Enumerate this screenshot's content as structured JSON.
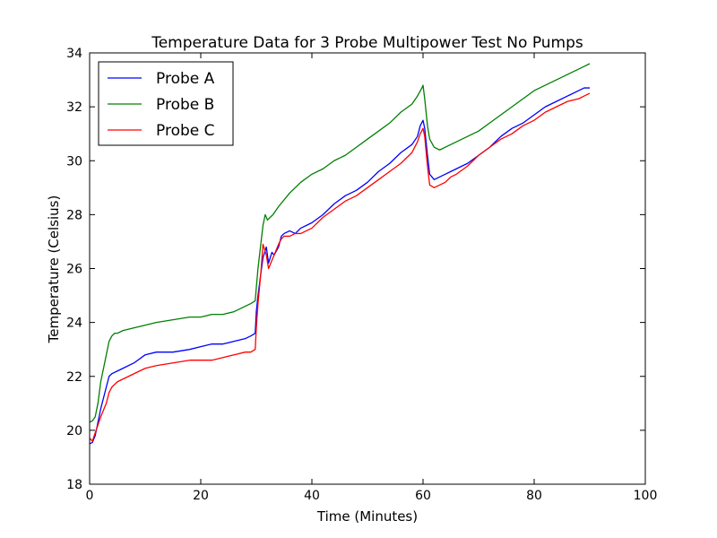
{
  "chart_data": {
    "type": "line",
    "title": "Temperature Data for 3 Probe Multipower Test No Pumps",
    "xlabel": "Time (Minutes)",
    "ylabel": "Temperature (Celsius)",
    "xlim": [
      0,
      100
    ],
    "ylim": [
      18,
      34
    ],
    "xticks": [
      0,
      20,
      40,
      60,
      80,
      100
    ],
    "yticks": [
      18,
      20,
      22,
      24,
      26,
      28,
      30,
      32,
      34
    ],
    "grid": false,
    "legend_position": "top-left",
    "series": [
      {
        "name": "Probe A",
        "color": "#0000ff",
        "x": [
          0,
          0.5,
          1,
          1.5,
          2,
          3,
          3.5,
          4,
          5,
          6,
          8,
          10,
          12,
          15,
          18,
          20,
          22,
          24,
          26,
          28,
          29,
          29.8,
          30,
          30.3,
          30.8,
          31.2,
          31.8,
          32.2,
          32.8,
          33.2,
          34,
          34.5,
          35,
          36,
          37,
          38,
          40,
          42,
          44,
          46,
          48,
          50,
          52,
          54,
          56,
          58,
          59,
          59.5,
          60,
          60.3,
          60.8,
          61.2,
          62,
          63,
          64,
          65,
          66,
          68,
          70,
          72,
          74,
          76,
          78,
          80,
          82,
          84,
          86,
          88,
          89,
          90
        ],
        "values": [
          19.5,
          19.55,
          19.8,
          20.3,
          20.8,
          21.6,
          22.0,
          22.1,
          22.2,
          22.3,
          22.5,
          22.8,
          22.9,
          22.9,
          23.0,
          23.1,
          23.2,
          23.2,
          23.3,
          23.4,
          23.5,
          23.6,
          24.4,
          25.0,
          25.8,
          26.4,
          26.8,
          26.2,
          26.6,
          26.5,
          26.8,
          27.2,
          27.3,
          27.4,
          27.3,
          27.5,
          27.7,
          28.0,
          28.4,
          28.7,
          28.9,
          29.2,
          29.6,
          29.9,
          30.3,
          30.6,
          30.9,
          31.3,
          31.5,
          31.2,
          30.2,
          29.5,
          29.3,
          29.4,
          29.5,
          29.6,
          29.7,
          29.9,
          30.2,
          30.5,
          30.9,
          31.2,
          31.4,
          31.7,
          32.0,
          32.2,
          32.4,
          32.6,
          32.7,
          32.7
        ]
      },
      {
        "name": "Probe B",
        "color": "#008000",
        "x": [
          0,
          0.5,
          1,
          1.5,
          2,
          3,
          3.5,
          4,
          4.5,
          5,
          6,
          8,
          10,
          12,
          15,
          18,
          20,
          22,
          24,
          26,
          28,
          29,
          29.8,
          30,
          30.3,
          30.8,
          31.2,
          31.6,
          32,
          32.5,
          33,
          34,
          36,
          38,
          40,
          42,
          44,
          46,
          48,
          50,
          52,
          54,
          56,
          58,
          59,
          59.8,
          60,
          60.3,
          60.8,
          61.2,
          62,
          63,
          64,
          65,
          66,
          68,
          70,
          72,
          74,
          76,
          78,
          80,
          82,
          84,
          86,
          88,
          89,
          90
        ],
        "values": [
          20.3,
          20.35,
          20.5,
          21.0,
          21.8,
          22.8,
          23.3,
          23.5,
          23.6,
          23.6,
          23.7,
          23.8,
          23.9,
          24.0,
          24.1,
          24.2,
          24.2,
          24.3,
          24.3,
          24.4,
          24.6,
          24.7,
          24.8,
          25.3,
          26.0,
          26.9,
          27.6,
          28.0,
          27.8,
          27.9,
          28.0,
          28.3,
          28.8,
          29.2,
          29.5,
          29.7,
          30.0,
          30.2,
          30.5,
          30.8,
          31.1,
          31.4,
          31.8,
          32.1,
          32.4,
          32.7,
          32.8,
          32.3,
          31.3,
          30.8,
          30.5,
          30.4,
          30.5,
          30.6,
          30.7,
          30.9,
          31.1,
          31.4,
          31.7,
          32.0,
          32.3,
          32.6,
          32.8,
          33.0,
          33.2,
          33.4,
          33.5,
          33.6
        ]
      },
      {
        "name": "Probe C",
        "color": "#ff0000",
        "x": [
          0,
          0.5,
          1,
          1.5,
          2,
          3,
          3.5,
          4,
          5,
          6,
          8,
          10,
          12,
          15,
          18,
          20,
          22,
          24,
          26,
          28,
          29,
          29.8,
          30,
          30.3,
          30.8,
          31.2,
          31.8,
          32.2,
          32.8,
          33.2,
          34,
          34.5,
          35,
          36,
          37,
          38,
          40,
          42,
          44,
          46,
          48,
          50,
          52,
          54,
          56,
          58,
          59,
          59.5,
          60,
          60.3,
          60.8,
          61.2,
          62,
          63,
          64,
          65,
          66,
          68,
          70,
          72,
          74,
          76,
          78,
          80,
          82,
          84,
          86,
          88,
          89,
          90
        ],
        "values": [
          19.7,
          19.6,
          19.9,
          20.2,
          20.5,
          21.0,
          21.4,
          21.6,
          21.8,
          21.9,
          22.1,
          22.3,
          22.4,
          22.5,
          22.6,
          22.6,
          22.6,
          22.7,
          22.8,
          22.9,
          22.9,
          23.0,
          23.8,
          24.7,
          25.8,
          26.9,
          26.5,
          26.0,
          26.3,
          26.5,
          26.9,
          27.1,
          27.2,
          27.2,
          27.3,
          27.3,
          27.5,
          27.9,
          28.2,
          28.5,
          28.7,
          29.0,
          29.3,
          29.6,
          29.9,
          30.3,
          30.7,
          31.0,
          31.2,
          30.9,
          29.8,
          29.1,
          29.0,
          29.1,
          29.2,
          29.4,
          29.5,
          29.8,
          30.2,
          30.5,
          30.8,
          31.0,
          31.3,
          31.5,
          31.8,
          32.0,
          32.2,
          32.3,
          32.4,
          32.5
        ]
      }
    ]
  }
}
